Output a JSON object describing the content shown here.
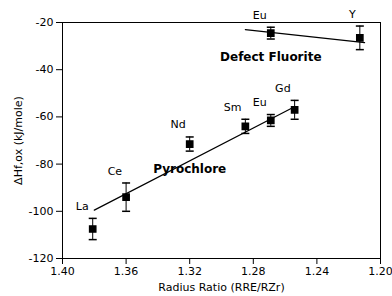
{
  "chart_data": {
    "type": "scatter",
    "x_label": "Radius Ratio (RRE/RZr)",
    "y_label": "ΔHf,ox (kJ/mole)",
    "xlim": [
      1.4,
      1.2
    ],
    "xticks": [
      {
        "value": 1.4,
        "label": "1.40"
      },
      {
        "value": 1.36,
        "label": "1.36"
      },
      {
        "value": 1.32,
        "label": "1.32"
      },
      {
        "value": 1.28,
        "label": "1.28"
      },
      {
        "value": 1.24,
        "label": "1.24"
      },
      {
        "value": 1.2,
        "label": "1.20"
      }
    ],
    "ylim": [
      -120,
      -20
    ],
    "yticks": [
      -120,
      -100,
      -80,
      -60,
      -40,
      -20
    ],
    "grid": false,
    "marker": "square",
    "series": [
      {
        "name": "Pyrochlore",
        "color": "#000000",
        "x": [
          1.381,
          1.36,
          1.32,
          1.285,
          1.269,
          1.254
        ],
        "values": [
          -107.5,
          -94,
          -71.5,
          -64,
          -61.5,
          -57
        ],
        "errors": [
          4.5,
          6,
          3,
          3,
          2.5,
          4
        ],
        "point_labels": [
          "La",
          "Ce",
          "Nd",
          "Sm",
          "Eu",
          "Gd"
        ],
        "fit": {
          "x": [
            1.38,
            1.255
          ],
          "values": [
            -99.5,
            -56
          ]
        }
      },
      {
        "name": "Defect Fluorite",
        "color": "#000000",
        "x": [
          1.269,
          1.213
        ],
        "values": [
          -24.5,
          -26.5
        ],
        "errors": [
          2.5,
          5
        ],
        "point_labels": [
          "Eu",
          "Y"
        ],
        "fit": {
          "x": [
            1.285,
            1.21
          ],
          "values": [
            -23,
            -28.5
          ]
        }
      }
    ]
  }
}
